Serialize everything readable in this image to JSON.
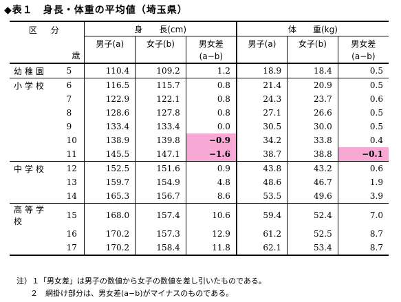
{
  "title": "◆表１　身長・体重の平均値（埼玉県）",
  "header": {
    "kubun": "区 分",
    "sai": "歳",
    "height_group": "身　　長(cm)",
    "weight_group": "体　　重(kg)",
    "male": "男子(a)",
    "female": "女子(b)",
    "diff": "男女差",
    "diff_formula": "(a−b)"
  },
  "rows": [
    {
      "group": "幼稚園",
      "age": "5",
      "h_m": "110.4",
      "h_f": "109.2",
      "h_d": "1.2",
      "w_m": "18.9",
      "w_f": "18.4",
      "w_d": "0.5"
    },
    {
      "group": "小学校",
      "age": "6",
      "h_m": "116.5",
      "h_f": "115.7",
      "h_d": "0.8",
      "w_m": "21.4",
      "w_f": "20.9",
      "w_d": "0.5"
    },
    {
      "group": "",
      "age": "7",
      "h_m": "122.9",
      "h_f": "122.1",
      "h_d": "0.8",
      "w_m": "24.3",
      "w_f": "23.7",
      "w_d": "0.6"
    },
    {
      "group": "",
      "age": "8",
      "h_m": "128.6",
      "h_f": "127.8",
      "h_d": "0.8",
      "w_m": "27.1",
      "w_f": "26.6",
      "w_d": "0.5"
    },
    {
      "group": "",
      "age": "9",
      "h_m": "133.4",
      "h_f": "133.4",
      "h_d": "0.0",
      "w_m": "30.5",
      "w_f": "30.0",
      "w_d": "0.5"
    },
    {
      "group": "",
      "age": "10",
      "h_m": "138.9",
      "h_f": "139.8",
      "h_d": "−0.9",
      "w_m": "34.2",
      "w_f": "33.8",
      "w_d": "0.4"
    },
    {
      "group": "",
      "age": "11",
      "h_m": "145.5",
      "h_f": "147.1",
      "h_d": "−1.6",
      "w_m": "38.7",
      "w_f": "38.8",
      "w_d": "−0.1"
    },
    {
      "group": "中学校",
      "age": "12",
      "h_m": "152.5",
      "h_f": "151.6",
      "h_d": "0.9",
      "w_m": "43.8",
      "w_f": "43.2",
      "w_d": "0.6"
    },
    {
      "group": "",
      "age": "13",
      "h_m": "159.7",
      "h_f": "154.9",
      "h_d": "4.8",
      "w_m": "48.6",
      "w_f": "46.7",
      "w_d": "1.9"
    },
    {
      "group": "",
      "age": "14",
      "h_m": "165.3",
      "h_f": "156.7",
      "h_d": "8.6",
      "w_m": "53.5",
      "w_f": "49.6",
      "w_d": "3.9"
    },
    {
      "group": "高等学校",
      "age": "15",
      "h_m": "168.0",
      "h_f": "157.4",
      "h_d": "10.6",
      "w_m": "59.4",
      "w_f": "52.4",
      "w_d": "7.0"
    },
    {
      "group": "",
      "age": "16",
      "h_m": "170.2",
      "h_f": "157.3",
      "h_d": "12.9",
      "w_m": "61.2",
      "w_f": "52.5",
      "w_d": "8.7"
    },
    {
      "group": "",
      "age": "17",
      "h_m": "170.2",
      "h_f": "158.4",
      "h_d": "11.8",
      "w_m": "62.1",
      "w_f": "53.4",
      "w_d": "8.7"
    }
  ],
  "highlight_color": "#f8a8d4",
  "notes": [
    "注）１「男女差」は男子の数値から女子の数値を差し引いたものである。",
    "２　網掛け部分は、男女差(a−b)がマイナスのものである。"
  ]
}
